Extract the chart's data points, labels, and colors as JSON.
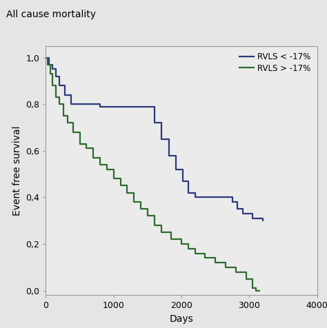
{
  "title": "All cause mortality",
  "xlabel": "Days",
  "ylabel": "Event free survival",
  "xlim": [
    0,
    4000
  ],
  "ylim": [
    -0.02,
    1.05
  ],
  "xticks": [
    0,
    1000,
    2000,
    3000,
    4000
  ],
  "yticks": [
    0.0,
    0.2,
    0.4,
    0.6,
    0.8,
    1.0
  ],
  "yticklabels": [
    "0,0",
    "0,2",
    "0,4",
    "0,6",
    "0,8",
    "1,0"
  ],
  "background_color": "#e5e5e5",
  "plot_bg_color": "#ebebeb",
  "line1_color": "#2b3a7a",
  "line2_color": "#2d6b2d",
  "line1_label": "RVLS < -17%",
  "line2_label": "RVLS > -17%",
  "line_width": 1.6,
  "blue_x": [
    0,
    50,
    100,
    150,
    200,
    280,
    370,
    800,
    1500,
    1600,
    1700,
    1820,
    1920,
    2020,
    2100,
    2200,
    2700,
    2750,
    2820,
    2900,
    3050,
    3200
  ],
  "blue_y": [
    1.0,
    0.97,
    0.95,
    0.92,
    0.88,
    0.84,
    0.8,
    0.79,
    0.79,
    0.72,
    0.65,
    0.58,
    0.52,
    0.47,
    0.42,
    0.4,
    0.4,
    0.38,
    0.35,
    0.33,
    0.31,
    0.3
  ],
  "green_x": [
    0,
    30,
    70,
    100,
    150,
    200,
    260,
    320,
    400,
    500,
    600,
    700,
    800,
    900,
    1000,
    1100,
    1200,
    1300,
    1400,
    1500,
    1600,
    1700,
    1850,
    2000,
    2100,
    2200,
    2350,
    2500,
    2650,
    2800,
    2950,
    3050,
    3100,
    3150
  ],
  "green_y": [
    1.0,
    0.97,
    0.93,
    0.88,
    0.83,
    0.8,
    0.75,
    0.72,
    0.68,
    0.63,
    0.61,
    0.57,
    0.54,
    0.52,
    0.48,
    0.45,
    0.42,
    0.38,
    0.35,
    0.32,
    0.28,
    0.25,
    0.22,
    0.2,
    0.18,
    0.16,
    0.14,
    0.12,
    0.1,
    0.08,
    0.05,
    0.01,
    0.0,
    0.0
  ]
}
